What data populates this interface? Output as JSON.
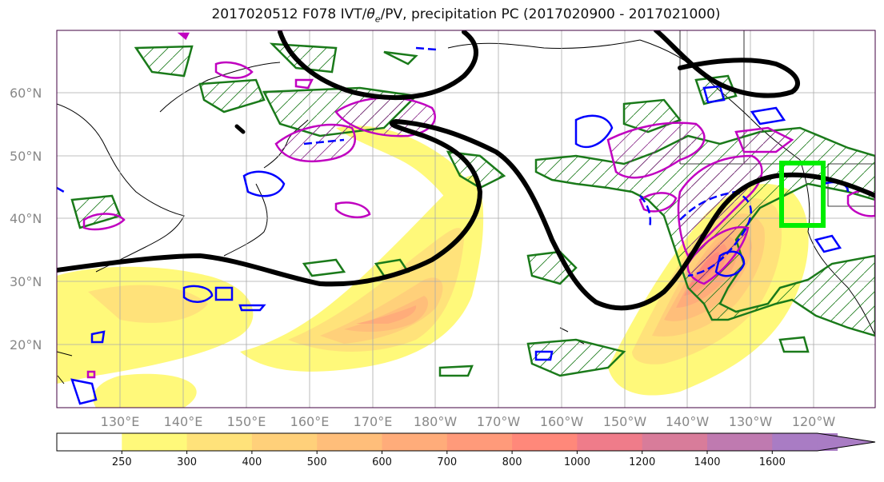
{
  "title_prefix": "2017020512 F078 IVT/",
  "title_theta": "θ",
  "title_theta_sub": "e",
  "title_suffix": "/PV, precipitation PC (2017020900 - 2017021000)",
  "lat_labels": [
    "60°N",
    "50°N",
    "40°N",
    "30°N",
    "20°N"
  ],
  "lon_labels": [
    "130°E",
    "140°E",
    "150°E",
    "160°E",
    "170°E",
    "180°W",
    "170°W",
    "160°W",
    "150°W",
    "140°W",
    "130°W",
    "120°W"
  ],
  "colorbar": {
    "ticks": [
      "250",
      "300",
      "400",
      "500",
      "600",
      "700",
      "800",
      "1000",
      "1200",
      "1400",
      "1600"
    ],
    "colors": [
      "#ffffff",
      "#fff97a",
      "#ffe27a",
      "#ffd07a",
      "#ffbe7a",
      "#ffac7a",
      "#ff9a7a",
      "#ff887a",
      "#ef7c8a",
      "#d87c9a",
      "#bf7ab0",
      "#a97cc4"
    ]
  },
  "colors": {
    "ivt_fill": "#ff8c5a",
    "pv_contour": "#000000",
    "precip_pc": "#1a7a1a",
    "theta_e_neg": "#0000ff",
    "theta_e_pos": "#c000c0",
    "target_box": "#00ee00"
  }
}
